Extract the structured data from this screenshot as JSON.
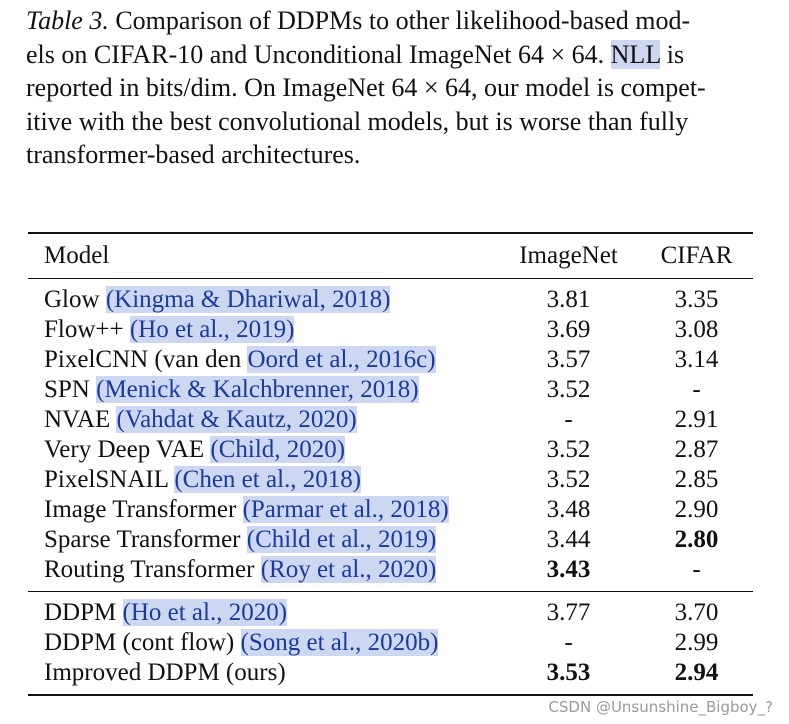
{
  "caption": {
    "label": "Table 3.",
    "lines": [
      "Comparison of DDPMs to other likelihood-based mod-",
      "els on CIFAR-10 and Unconditional ImageNet 64 × 64.",
      "is",
      "reported in bits/dim. On ImageNet 64 × 64, our model is compet-",
      "itive with the best convolutional models, but is worse than fully",
      "transformer-based architectures."
    ],
    "highlight": "NLL"
  },
  "table": {
    "headers": {
      "model": "Model",
      "imagenet": "ImageNet",
      "cifar": "CIFAR"
    },
    "rows": [
      {
        "model": "Glow",
        "cite": "(Kingma & Dhariwal, 2018)",
        "imagenet": "3.81",
        "cifar": "3.35"
      },
      {
        "model": "Flow++",
        "cite": "(Ho et al., 2019)",
        "imagenet": "3.69",
        "cifar": "3.08"
      },
      {
        "model": "PixelCNN (van den",
        "cite": "Oord et al., 2016c)",
        "imagenet": "3.57",
        "cifar": "3.14"
      },
      {
        "model": "SPN",
        "cite": "(Menick & Kalchbrenner, 2018)",
        "imagenet": "3.52",
        "cifar": "-"
      },
      {
        "model": "NVAE",
        "cite": "(Vahdat & Kautz, 2020)",
        "imagenet": "-",
        "cifar": "2.91"
      },
      {
        "model": "Very Deep VAE",
        "cite": "(Child, 2020)",
        "imagenet": "3.52",
        "cifar": "2.87"
      },
      {
        "model": "PixelSNAIL",
        "cite": "(Chen et al., 2018)",
        "imagenet": "3.52",
        "cifar": "2.85"
      },
      {
        "model": "Image Transformer",
        "cite": "(Parmar et al., 2018)",
        "imagenet": "3.48",
        "cifar": "2.90"
      },
      {
        "model": "Sparse Transformer",
        "cite": "(Child et al., 2019)",
        "imagenet": "3.44",
        "cifar": "2.80"
      },
      {
        "model": "Routing Transformer",
        "cite": "(Roy et al., 2020)",
        "imagenet": "3.43",
        "cifar": "-"
      }
    ],
    "rows2": [
      {
        "model": "DDPM",
        "cite": "(Ho et al., 2020)",
        "imagenet": "3.77",
        "cifar": "3.70"
      },
      {
        "model": "DDPM (cont flow)",
        "cite": "(Song et al., 2020b)",
        "imagenet": "-",
        "cifar": "2.99"
      },
      {
        "model": "Improved DDPM (ours)",
        "cite": "",
        "imagenet": "3.53",
        "cifar": "2.94"
      }
    ]
  },
  "watermark": "CSDN @Unsunshine_Bigboy_?",
  "colors": {
    "citation": "#1a3a9c",
    "highlight": "#cdd7f2"
  }
}
